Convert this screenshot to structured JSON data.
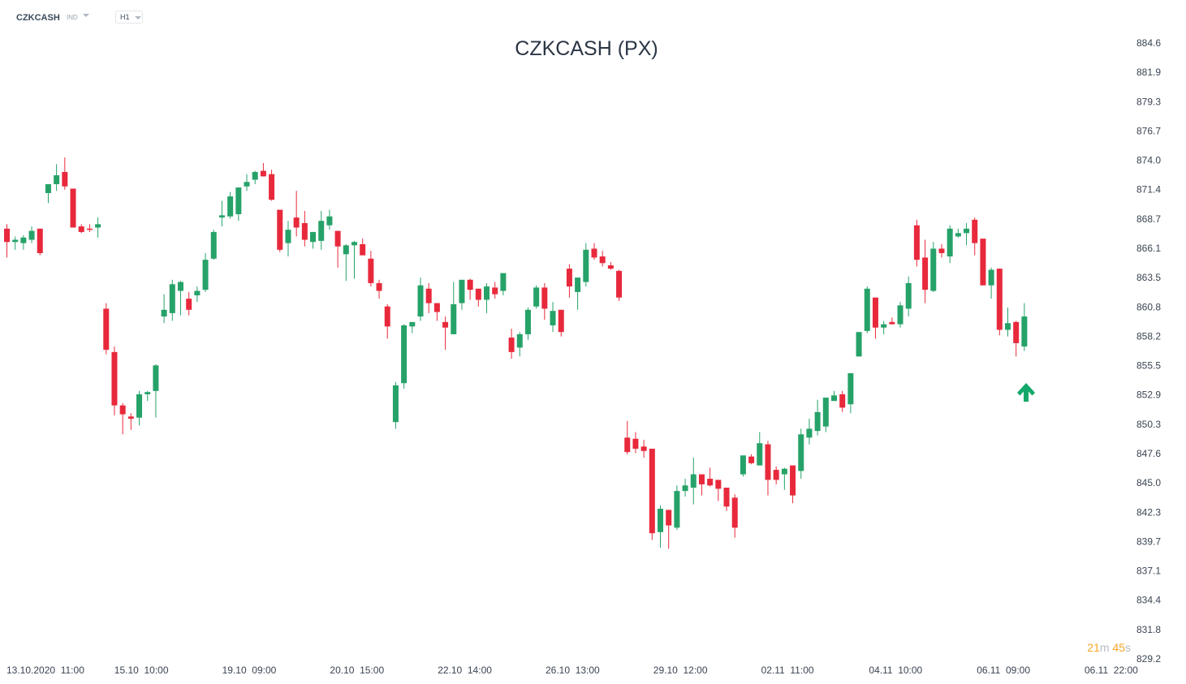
{
  "toolbar": {
    "symbol": "CZKCASH",
    "instrument_type": "IND",
    "timeframe": "H1"
  },
  "countdown": {
    "minutes": "21",
    "minutes_unit": "m",
    "seconds": "45",
    "seconds_unit": "s"
  },
  "colors": {
    "up": "#26a269",
    "down": "#e8293c",
    "wick_up": "#26a269",
    "wick_down": "#e8293c",
    "arrow": "#14a86a"
  },
  "signal": {
    "direction": "up",
    "icon": "arrow-up-icon"
  },
  "chart_data": {
    "type": "candlestick",
    "title": "CZKCASH (PX)",
    "ylim": [
      829.2,
      884.6
    ],
    "y_ticks": [
      "884.6",
      "881.9",
      "879.3",
      "876.7",
      "874.0",
      "871.4",
      "868.7",
      "866.1",
      "863.5",
      "860.8",
      "858.2",
      "855.5",
      "852.9",
      "850.3",
      "847.6",
      "845.0",
      "842.3",
      "839.7",
      "837.1",
      "834.4",
      "831.8",
      "829.2"
    ],
    "x_labels": [
      "13.10.2020  11:00",
      "15.10  10:00",
      "19.10  09:00",
      "20.10  15:00",
      "22.10  14:00",
      "26.10  13:00",
      "29.10  12:00",
      "02.11  11:00",
      "04.11  10:00",
      "06.11  09:00",
      "06.11  22:00"
    ],
    "candles": [
      [
        867.9,
        868.3,
        865.3,
        866.7
      ],
      [
        866.7,
        867.2,
        866.0,
        866.9
      ],
      [
        866.6,
        867.3,
        866.0,
        867.1
      ],
      [
        866.9,
        868.1,
        866.6,
        867.7
      ],
      [
        867.9,
        867.9,
        865.5,
        865.7
      ],
      [
        871.1,
        871.5,
        870.2,
        871.9
      ],
      [
        871.9,
        873.7,
        871.3,
        872.7
      ],
      [
        873.0,
        874.3,
        871.4,
        871.7
      ],
      [
        871.5,
        871.5,
        868.0,
        868.0
      ],
      [
        868.1,
        868.3,
        867.5,
        867.6
      ],
      [
        867.9,
        868.3,
        867.6,
        867.8
      ],
      [
        868.0,
        868.9,
        867.1,
        868.3
      ],
      [
        860.7,
        861.2,
        856.6,
        857.0
      ],
      [
        856.8,
        857.3,
        851.1,
        852.0
      ],
      [
        852.0,
        852.2,
        849.4,
        851.2
      ],
      [
        851.0,
        851.3,
        849.8,
        850.8
      ],
      [
        850.9,
        853.3,
        850.2,
        853.0
      ],
      [
        853.0,
        853.3,
        852.4,
        853.2
      ],
      [
        853.3,
        855.7,
        850.9,
        855.6
      ],
      [
        860.0,
        862.0,
        859.4,
        860.6
      ],
      [
        860.3,
        863.3,
        859.6,
        862.9
      ],
      [
        862.3,
        863.2,
        860.1,
        863.1
      ],
      [
        861.6,
        862.2,
        860.1,
        860.6
      ],
      [
        861.9,
        862.7,
        861.3,
        862.3
      ],
      [
        862.4,
        865.7,
        862.2,
        865.1
      ],
      [
        865.2,
        867.8,
        865.1,
        867.6
      ],
      [
        868.9,
        870.4,
        868.1,
        869.1
      ],
      [
        869.0,
        871.2,
        868.8,
        870.8
      ],
      [
        869.2,
        871.6,
        868.6,
        871.6
      ],
      [
        871.7,
        872.8,
        871.3,
        872.1
      ],
      [
        872.3,
        873.1,
        871.9,
        873.0
      ],
      [
        873.1,
        873.8,
        872.6,
        872.6
      ],
      [
        872.8,
        873.2,
        870.4,
        870.5
      ],
      [
        869.6,
        869.6,
        865.8,
        866.0
      ],
      [
        866.6,
        868.6,
        865.4,
        867.8
      ],
      [
        868.9,
        871.3,
        867.2,
        868.0
      ],
      [
        868.4,
        869.5,
        866.3,
        866.9
      ],
      [
        866.7,
        867.6,
        866.1,
        867.6
      ],
      [
        866.8,
        869.5,
        866.0,
        868.6
      ],
      [
        868.2,
        869.6,
        867.8,
        869.0
      ],
      [
        867.7,
        867.7,
        864.4,
        866.3
      ],
      [
        865.6,
        866.5,
        863.2,
        866.4
      ],
      [
        866.4,
        866.8,
        863.4,
        866.7
      ],
      [
        866.5,
        867.0,
        865.6,
        865.5
      ],
      [
        865.2,
        865.9,
        862.7,
        863.0
      ],
      [
        863.0,
        863.3,
        861.6,
        862.3
      ],
      [
        860.9,
        861.1,
        858.0,
        859.1
      ],
      [
        850.5,
        854.1,
        849.9,
        853.8
      ],
      [
        854.0,
        859.3,
        853.5,
        859.2
      ],
      [
        859.1,
        859.4,
        858.5,
        859.5
      ],
      [
        860.0,
        863.5,
        859.6,
        862.8
      ],
      [
        862.5,
        863.0,
        860.3,
        861.2
      ],
      [
        861.2,
        861.2,
        859.6,
        860.4
      ],
      [
        859.5,
        860.0,
        857.0,
        859.0
      ],
      [
        858.4,
        863.1,
        858.5,
        861.1
      ],
      [
        861.2,
        863.3,
        860.6,
        863.3
      ],
      [
        863.3,
        863.4,
        861.5,
        862.4
      ],
      [
        862.5,
        862.5,
        860.9,
        861.5
      ],
      [
        861.5,
        863.0,
        860.3,
        862.7
      ],
      [
        862.6,
        863.1,
        861.6,
        862.0
      ],
      [
        862.3,
        863.4,
        861.9,
        863.9
      ],
      [
        858.1,
        858.9,
        856.2,
        856.8
      ],
      [
        857.2,
        858.6,
        856.4,
        858.4
      ],
      [
        858.4,
        860.8,
        857.9,
        860.6
      ],
      [
        860.9,
        862.8,
        860.7,
        862.6
      ],
      [
        862.6,
        863.0,
        859.7,
        860.7
      ],
      [
        859.2,
        861.3,
        858.6,
        860.5
      ],
      [
        860.6,
        860.6,
        858.2,
        858.6
      ],
      [
        864.3,
        864.7,
        861.7,
        862.7
      ],
      [
        862.2,
        863.5,
        860.6,
        863.5
      ],
      [
        863.1,
        866.6,
        862.7,
        866.0
      ],
      [
        866.1,
        866.6,
        865.1,
        865.3
      ],
      [
        865.4,
        865.9,
        864.5,
        864.8
      ],
      [
        864.6,
        864.9,
        864.2,
        864.3
      ],
      [
        864.1,
        864.2,
        861.4,
        861.7
      ],
      [
        849.1,
        850.6,
        847.6,
        847.8
      ],
      [
        849.0,
        849.6,
        847.7,
        848.1
      ],
      [
        848.3,
        848.9,
        847.3,
        847.9
      ],
      [
        848.1,
        848.1,
        839.9,
        840.5
      ],
      [
        840.6,
        843.0,
        839.2,
        842.7
      ],
      [
        842.6,
        842.6,
        839.1,
        841.2
      ],
      [
        841.0,
        844.8,
        840.8,
        844.3
      ],
      [
        844.3,
        845.4,
        843.8,
        844.8
      ],
      [
        844.6,
        847.3,
        843.1,
        845.8
      ],
      [
        845.8,
        845.8,
        843.9,
        844.9
      ],
      [
        845.4,
        846.4,
        844.7,
        844.8
      ],
      [
        845.3,
        845.3,
        843.4,
        844.5
      ],
      [
        844.6,
        844.6,
        842.5,
        842.9
      ],
      [
        843.7,
        844.0,
        840.1,
        841.0
      ],
      [
        845.8,
        847.4,
        845.6,
        847.5
      ],
      [
        847.4,
        847.6,
        846.7,
        846.8
      ],
      [
        846.6,
        849.6,
        846.6,
        848.6
      ],
      [
        848.5,
        848.8,
        843.9,
        845.3
      ],
      [
        846.2,
        846.5,
        844.9,
        845.3
      ],
      [
        845.8,
        846.4,
        844.4,
        846.3
      ],
      [
        846.6,
        846.6,
        843.2,
        843.9
      ],
      [
        846.1,
        849.9,
        845.4,
        849.4
      ],
      [
        849.1,
        850.8,
        848.5,
        849.9
      ],
      [
        849.7,
        852.5,
        849.3,
        851.4
      ],
      [
        850.1,
        852.4,
        849.6,
        852.7
      ],
      [
        852.4,
        853.3,
        852.4,
        852.9
      ],
      [
        853.0,
        853.3,
        851.4,
        851.8
      ],
      [
        852.1,
        854.5,
        851.3,
        854.9
      ],
      [
        856.4,
        858.5,
        856.4,
        858.6
      ],
      [
        858.7,
        862.7,
        858.5,
        862.5
      ],
      [
        861.7,
        861.7,
        858.0,
        859.0
      ],
      [
        859.0,
        859.6,
        858.4,
        859.3
      ],
      [
        859.5,
        859.9,
        859.3,
        859.3
      ],
      [
        859.3,
        861.3,
        859.0,
        861.0
      ],
      [
        860.7,
        863.6,
        860.0,
        863.0
      ],
      [
        868.2,
        868.7,
        864.5,
        865.1
      ],
      [
        865.3,
        866.9,
        861.2,
        862.4
      ],
      [
        862.3,
        866.7,
        862.2,
        866.1
      ],
      [
        866.1,
        866.5,
        865.3,
        865.7
      ],
      [
        865.4,
        868.2,
        864.8,
        867.9
      ],
      [
        867.2,
        867.9,
        867.1,
        867.5
      ],
      [
        867.5,
        868.4,
        866.4,
        867.9
      ],
      [
        868.7,
        868.9,
        865.5,
        866.6
      ],
      [
        867.0,
        867.0,
        862.8,
        862.8
      ],
      [
        862.8,
        864.4,
        861.6,
        864.2
      ],
      [
        864.3,
        864.3,
        858.3,
        858.8
      ],
      [
        858.8,
        860.8,
        858.2,
        859.4
      ],
      [
        859.5,
        859.6,
        856.4,
        857.6
      ],
      [
        857.3,
        861.2,
        856.9,
        860.0
      ]
    ]
  }
}
